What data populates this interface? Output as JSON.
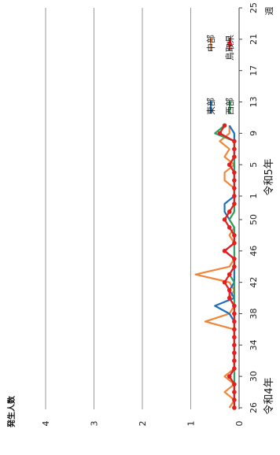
{
  "chart_data": {
    "type": "line",
    "ylabel": "発生人数",
    "year_labels": [
      "令和4年",
      "令和5年"
    ],
    "x_unit_label": "週",
    "xtick_labels": [
      "26",
      "30",
      "34",
      "38",
      "42",
      "46",
      "50",
      "1",
      "5",
      "9",
      "13",
      "17",
      "21",
      "25"
    ],
    "week_sequence": [
      26,
      27,
      28,
      29,
      30,
      31,
      32,
      33,
      34,
      35,
      36,
      37,
      38,
      39,
      40,
      41,
      42,
      43,
      44,
      45,
      46,
      47,
      48,
      49,
      50,
      51,
      52,
      1,
      2,
      3,
      4,
      5,
      6,
      7,
      8,
      9,
      10,
      11,
      12,
      13,
      14,
      15,
      16,
      17,
      18,
      19,
      20,
      21,
      22,
      23,
      24,
      25
    ],
    "ylim": [
      0,
      4
    ],
    "ytick_labels": [
      "0",
      "1",
      "2",
      "3",
      "4"
    ],
    "grid": "major-y",
    "legend_position": "top-right",
    "series": [
      {
        "name": "東部",
        "color": "#1f6fbf",
        "marker": "none",
        "values": [
          0.1,
          0.1,
          0.1,
          0.1,
          0.2,
          0.1,
          0.1,
          0.1,
          0.1,
          0.1,
          0.1,
          0.1,
          0.2,
          0.5,
          0.1,
          0.2,
          0.1,
          0.1,
          0.1,
          0.1,
          0.3,
          0.1,
          0.1,
          0.1,
          0.2,
          0.3,
          0.3,
          0.1,
          0.1,
          0.1,
          0.1,
          0.1,
          0.1,
          0.1,
          0.1,
          0.1,
          0.2
        ]
      },
      {
        "name": "中部",
        "color": "#f0863c",
        "marker": "none",
        "values": [
          0.2,
          0.1,
          0.3,
          0.1,
          0.3,
          0.1,
          0.1,
          0.1,
          0.1,
          0.1,
          0.1,
          0.7,
          0.2,
          0.1,
          0.2,
          0.1,
          0.2,
          0.9,
          0.2,
          0.1,
          0.3,
          0.1,
          0.2,
          0.1,
          0.2,
          0.1,
          0.1,
          0.1,
          0.1,
          0.3,
          0.3,
          0.1,
          0.3,
          0.2,
          0.4,
          0.2,
          0.2
        ]
      },
      {
        "name": "西部",
        "color": "#2ea060",
        "marker": "none",
        "values": [
          0.1,
          0.1,
          0.1,
          0.1,
          0.1,
          0.1,
          0.1,
          0.1,
          0.1,
          0.1,
          0.1,
          0.1,
          0.1,
          0.1,
          0.1,
          0.1,
          0.1,
          0.2,
          0.1,
          0.1,
          0.1,
          0.1,
          0.1,
          0.1,
          0.2,
          0.1,
          0.1,
          0.1,
          0.1,
          0.1,
          0.1,
          0.1,
          0.1,
          0.1,
          0.1,
          0.5,
          0.3
        ]
      },
      {
        "name": "鳥取県",
        "color": "#e81c1c",
        "marker": "circle",
        "values": [
          0.1,
          0.1,
          0.1,
          0.1,
          0.2,
          0.1,
          0.1,
          0.1,
          0.1,
          0.1,
          0.1,
          0.1,
          0.1,
          0.1,
          0.2,
          0.2,
          0.3,
          0.2,
          0.1,
          0.1,
          0.3,
          0.1,
          0.1,
          0.2,
          0.3,
          0.2,
          0.1,
          0.1,
          0.1,
          0.1,
          0.1,
          0.2,
          0.1,
          0.1,
          0.1,
          0.4,
          0.3
        ]
      }
    ]
  }
}
